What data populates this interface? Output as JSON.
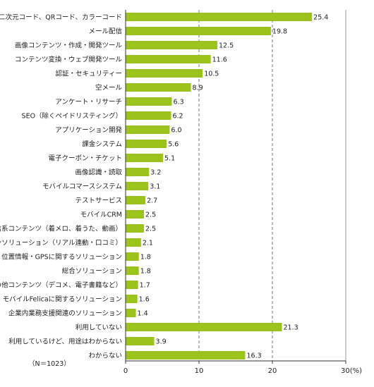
{
  "chart_data": {
    "type": "bar",
    "orientation": "horizontal",
    "categories": [
      "二次元コード、QRコード、カラーコード",
      "メール配信",
      "画像コンテンツ・作成・開発ツール",
      "コンテンツ変換・ウェブ開発ツール",
      "認証・セキュリティー",
      "空メール",
      "アンケート・リサーチ",
      "SEO（除くペイドリスティング）",
      "アプリケーション開発",
      "課金システム",
      "電子クーポン・チケット",
      "画像認識・読取",
      "モバイルコマースシステム",
      "テストサービス",
      "モバイルCRM",
      "着信系コンテンツ（着メロ、着うた、動画）",
      "キャンペーンソリューション（リアル連動・口コミ）",
      "位置情報・GPSに関するソリューション",
      "総合ソリューション",
      "その他コンテンツ（デコメ、電子書籍など）",
      "モバイルFelicaに関するソリューション",
      "企業内業務支援関連のソリューション",
      "利用していない",
      "利用しているけど、用途はわからない",
      "わからない"
    ],
    "values": [
      25.4,
      19.8,
      12.5,
      11.6,
      10.5,
      8.9,
      6.3,
      6.2,
      6.0,
      5.6,
      5.1,
      3.2,
      3.1,
      2.7,
      2.5,
      2.5,
      2.1,
      1.8,
      1.8,
      1.7,
      1.6,
      1.4,
      21.3,
      3.9,
      16.3
    ],
    "value_labels": [
      "25.4",
      "19.8",
      "12.5",
      "11.6",
      "10.5",
      "8.9",
      "6.3",
      "6.2",
      "6.0",
      "5.6",
      "5.1",
      "3.2",
      "3.1",
      "2.7",
      "2.5",
      "2.5",
      "2.1",
      "1.8",
      "1.8",
      "1.7",
      "1.6",
      "1.4",
      "21.3",
      "3.9",
      "16.3"
    ],
    "xlim": [
      0,
      30
    ],
    "xticks": [
      "0",
      "10",
      "20",
      "30(%)"
    ],
    "grid": "dashed-vertical",
    "bar_color": "#9bc31c",
    "note": "（N＝1023）"
  }
}
